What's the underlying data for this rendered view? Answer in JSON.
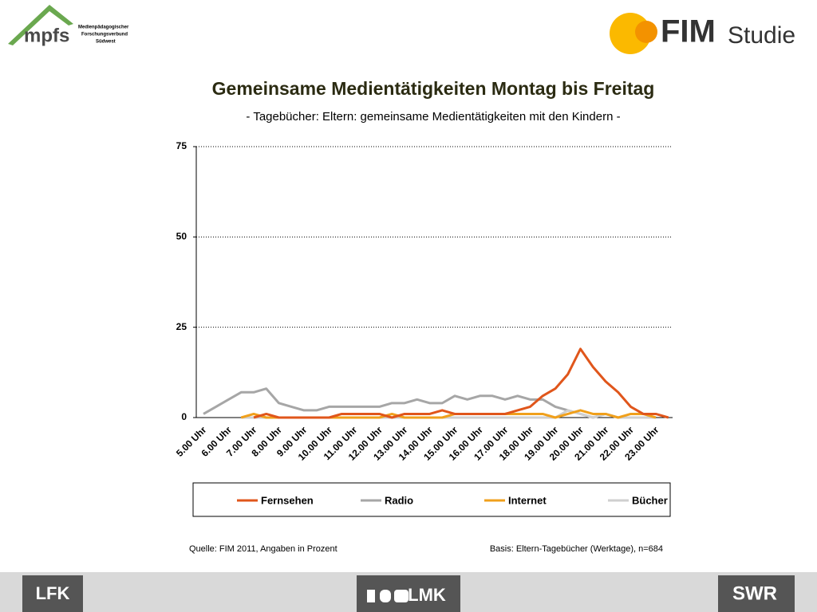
{
  "logos": {
    "mpfs": "mpfs",
    "mpfs_line1": "Medienpädagogischer",
    "mpfs_line2": "Forschungsverbund",
    "mpfs_line3": "Südwest",
    "fim": "FIM",
    "studie": "Studie",
    "lfk": "LFK",
    "lmk": "LMK",
    "swr": "SWR"
  },
  "chart_data": {
    "type": "line",
    "title": "Gemeinsame Medientätigkeiten Montag bis Freitag",
    "subtitle": "- Tagebücher: Eltern: gemeinsame Medientätigkeiten mit den Kindern -",
    "source": "Quelle: FIM 2011, Angaben in Prozent",
    "basis": "Basis: Eltern-Tagebücher (Werktage), n=684",
    "categories": [
      "5.00 Uhr",
      null,
      "6.00 Uhr",
      null,
      "7.00 Uhr",
      null,
      "8.00 Uhr",
      null,
      "9.00 Uhr",
      null,
      "10.00 Uhr",
      null,
      "11.00 Uhr",
      null,
      "12.00 Uhr",
      null,
      "13.00 Uhr",
      null,
      "14.00 Uhr",
      null,
      "15.00 Uhr",
      null,
      "16.00 Uhr",
      null,
      "17.00 Uhr",
      null,
      "18.00 Uhr",
      null,
      "19.00 Uhr",
      null,
      "20.00 Uhr",
      null,
      "21.00 Uhr",
      null,
      "22.00 Uhr",
      null,
      "23.00 Uhr",
      null
    ],
    "series": [
      {
        "name": "Fernsehen",
        "color": "#e0561b",
        "values": [
          null,
          null,
          null,
          null,
          0,
          1,
          0,
          0,
          0,
          0,
          0,
          1,
          1,
          1,
          1,
          0,
          1,
          1,
          1,
          2,
          1,
          1,
          1,
          1,
          1,
          2,
          3,
          6,
          8,
          12,
          19,
          14,
          10,
          7,
          3,
          1,
          1,
          0
        ]
      },
      {
        "name": "Radio",
        "color": "#a6a6a6",
        "values": [
          1,
          3,
          5,
          7,
          7,
          8,
          4,
          3,
          2,
          2,
          3,
          3,
          3,
          3,
          3,
          4,
          4,
          5,
          4,
          4,
          6,
          5,
          6,
          6,
          5,
          6,
          5,
          5,
          3,
          2,
          1,
          0,
          1,
          0,
          0,
          null,
          null,
          null
        ]
      },
      {
        "name": "Internet",
        "color": "#f0a01c",
        "values": [
          null,
          null,
          null,
          0,
          1,
          0,
          0,
          0,
          0,
          0,
          0,
          0,
          0,
          0,
          0,
          1,
          0,
          0,
          0,
          0,
          1,
          1,
          1,
          1,
          1,
          1,
          1,
          1,
          0,
          1,
          2,
          1,
          1,
          0,
          1,
          1,
          0,
          null
        ]
      },
      {
        "name": "Bücher",
        "color": "#cfcfcf",
        "values": [
          null,
          null,
          null,
          0,
          0,
          0,
          0,
          0,
          0,
          0,
          0,
          0,
          0,
          0,
          0,
          0,
          0,
          0,
          0,
          0,
          0,
          0,
          0,
          0,
          0,
          0,
          0,
          0,
          0,
          2,
          1,
          0,
          1,
          0,
          0,
          0,
          0,
          null
        ]
      }
    ],
    "ylim": [
      0,
      75
    ],
    "yticks": [
      0,
      25,
      50,
      75
    ],
    "grid": true,
    "legend": "bottom"
  }
}
